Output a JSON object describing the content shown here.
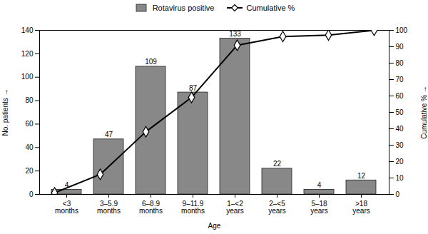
{
  "chart_data": {
    "type": "bar",
    "xlabel": "Age",
    "ylabel": "No. patients",
    "y2label": "Cumulative %",
    "categories": [
      "<3\nmonths",
      "3–5.9\nmonths",
      "6–8.9\nmonths",
      "9–11.9\nmonths",
      "1–<2\nyears",
      "2–<5\nyears",
      "5–18\nyears",
      ">18\nyears"
    ],
    "series": [
      {
        "name": "Rotavirus positive",
        "type": "bar",
        "color": "#888888",
        "data_labels": true,
        "values": [
          4,
          47,
          109,
          87,
          133,
          22,
          4,
          12
        ]
      },
      {
        "name": "Cumulative %",
        "type": "line",
        "axis": "y2",
        "color": "#000000",
        "marker": "diamond",
        "values": [
          0.96,
          12.2,
          38.2,
          59.1,
          90.9,
          96.2,
          97.1,
          100.0
        ]
      }
    ],
    "ylim": [
      0,
      140
    ],
    "yticks": [
      0,
      20,
      40,
      60,
      80,
      100,
      120,
      140
    ],
    "y2lim": [
      0,
      100
    ],
    "y2ticks": [
      0,
      10,
      20,
      30,
      40,
      50,
      60,
      70,
      80,
      90,
      100
    ],
    "legend": "upper center",
    "grid": false
  }
}
